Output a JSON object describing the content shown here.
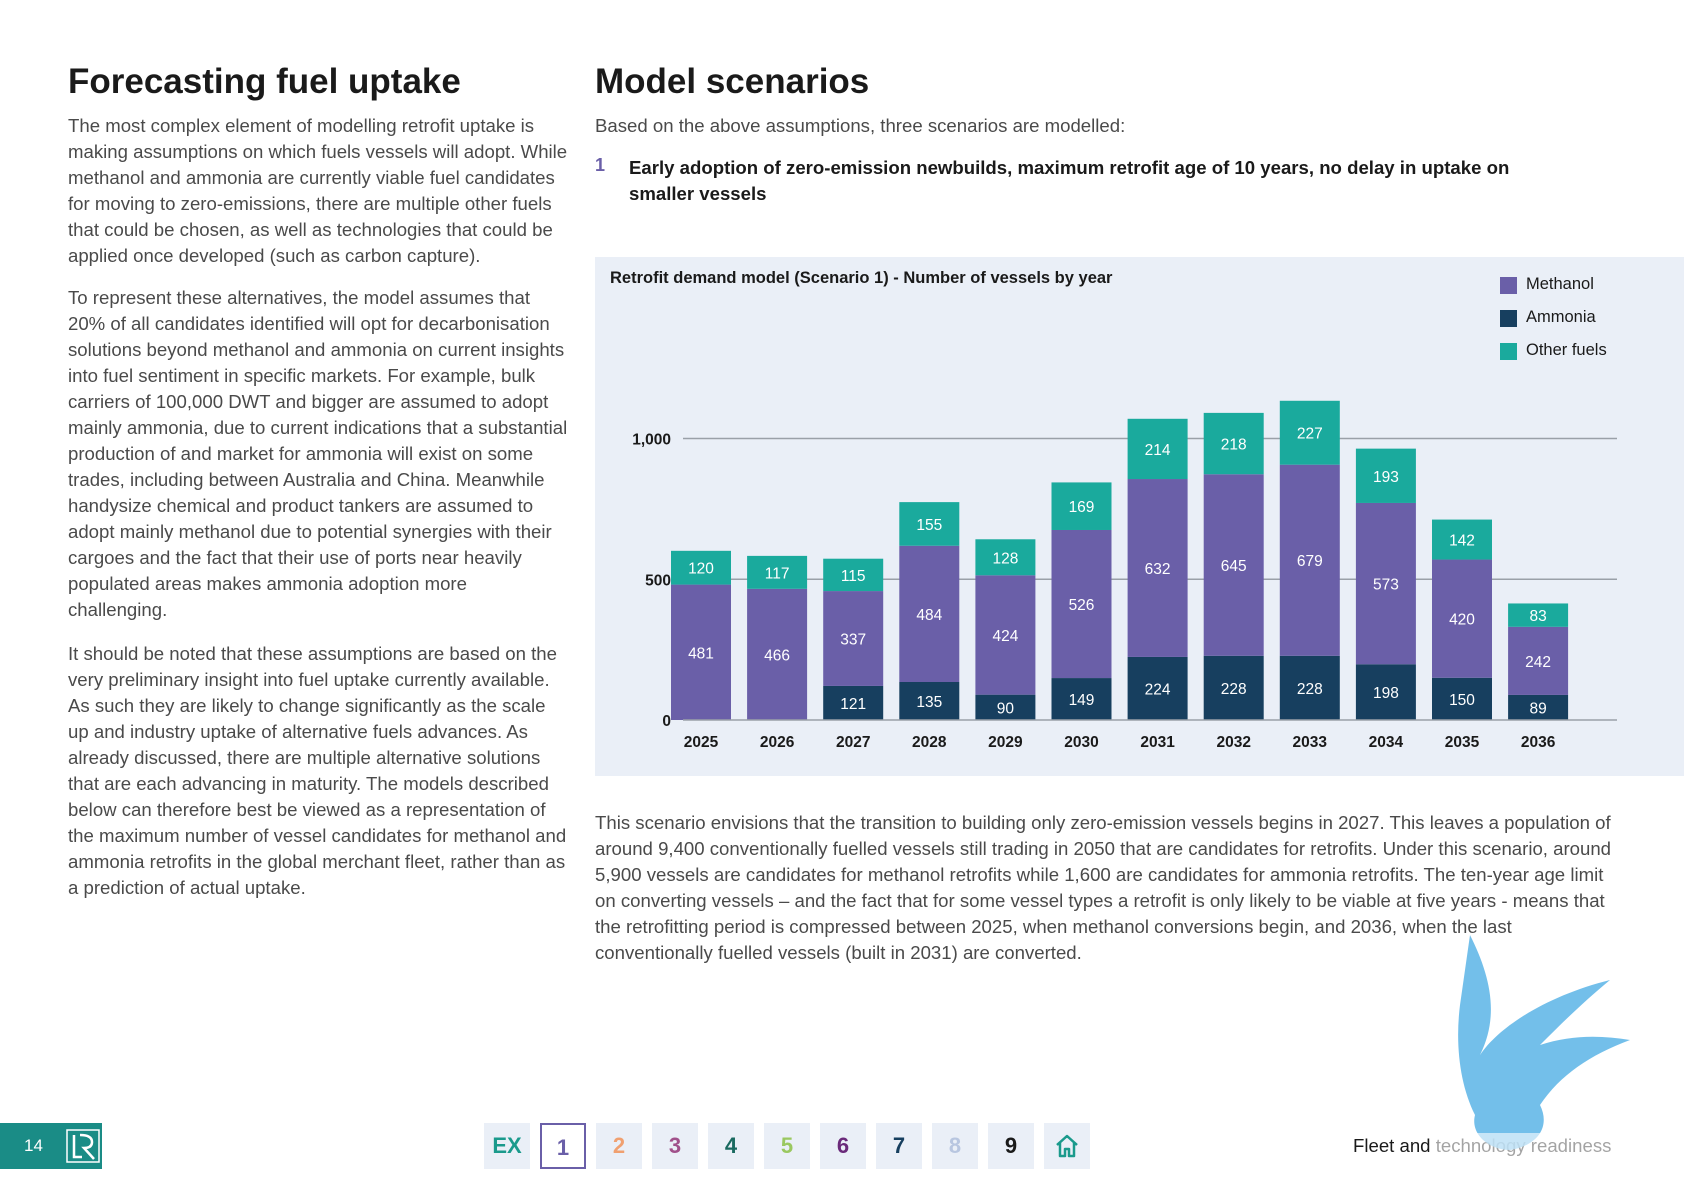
{
  "left": {
    "title": "Forecasting fuel uptake",
    "paragraphs": [
      "The most complex element of modelling retrofit uptake is making assumptions on which fuels vessels will adopt. While methanol and ammonia are currently viable fuel candidates for moving to zero-emissions, there are multiple other fuels that could be chosen, as well as technologies that could be applied once developed (such as carbon capture).",
      "To represent these alternatives, the model assumes that 20% of all candidates identified will opt for decarbonisation solutions beyond methanol and ammonia on current insights into fuel sentiment in specific markets. For example, bulk carriers of 100,000 DWT and bigger are assumed to adopt mainly ammonia, due to current indications that a substantial production of and market for ammonia will exist on some trades, including between Australia and China. Meanwhile handysize chemical and product tankers are assumed to adopt mainly methanol due to potential synergies with their cargoes and the fact that their use of ports near heavily populated areas makes ammonia adoption more challenging.",
      "It should be noted that these assumptions are based on the very preliminary insight into fuel uptake currently available. As such they are likely to change significantly as the scale up and industry uptake of alternative fuels advances. As already discussed, there are multiple alternative solutions that are each advancing in maturity. The models described below can therefore best be viewed as a representation of the maximum number of vessel candidates for methanol and ammonia retrofits in the global merchant fleet, rather than as a prediction of actual uptake."
    ]
  },
  "right": {
    "title": "Model scenarios",
    "intro": "Based on the above assumptions, three scenarios are modelled:",
    "scenario_number": "1",
    "scenario_text": "Early adoption of zero-emission newbuilds, maximum retrofit age of 10 years, no delay in uptake on smaller vessels",
    "body": "This scenario envisions that the transition to building only zero-emission vessels begins in 2027. This leaves a population of around 9,400 conventionally fuelled vessels still trading in 2050 that are candidates for retrofits. Under this scenario, around 5,900 vessels are candidates for methanol retrofits while 1,600 are candidates for ammonia retrofits. The ten-year age limit on converting vessels – and the fact that for some vessel types a retrofit is only likely to be viable at five years -  means that the retrofitting period is compressed between 2025, when methanol conversions begin, and 2036, when the last conventionally fuelled vessels (built in 2031) are converted."
  },
  "chart_data": {
    "type": "bar",
    "stacked": true,
    "title": "Retrofit demand model (Scenario 1) - Number of vessels by year",
    "categories": [
      "2025",
      "2026",
      "2027",
      "2028",
      "2029",
      "2030",
      "2031",
      "2032",
      "2033",
      "2034",
      "2035",
      "2036"
    ],
    "series": [
      {
        "name": "Ammonia",
        "color": "#173f5f",
        "values": [
          null,
          null,
          121,
          135,
          90,
          149,
          224,
          228,
          228,
          198,
          150,
          89
        ]
      },
      {
        "name": "Methanol",
        "color": "#6a5fa8",
        "values": [
          481,
          466,
          337,
          484,
          424,
          526,
          632,
          645,
          679,
          573,
          420,
          242
        ]
      },
      {
        "name": "Other fuels",
        "color": "#1aaa9d",
        "values": [
          120,
          117,
          115,
          155,
          128,
          169,
          214,
          218,
          227,
          193,
          142,
          83
        ]
      }
    ],
    "legend_order": [
      "Methanol",
      "Ammonia",
      "Other fuels"
    ],
    "yticks": [
      0,
      500,
      1000
    ],
    "ytick_labels": [
      "0",
      "500",
      "1,000"
    ],
    "ylim": [
      0,
      1140
    ],
    "grid": true,
    "legend_position": "top-right"
  },
  "footer": {
    "page_number": "14",
    "nav": [
      "EX",
      "1",
      "2",
      "3",
      "4",
      "5",
      "6",
      "7",
      "8",
      "9"
    ],
    "nav_colors": [
      "#1a9a8c",
      "#6a5fa8",
      "#f0a070",
      "#a0508a",
      "#1a6a60",
      "#9ac860",
      "#6a2a7a",
      "#173f5f",
      "#b8c6e0",
      "#1a1a1a"
    ],
    "home_color": "#1a9a8c",
    "section": "Fleet and technology readiness"
  }
}
